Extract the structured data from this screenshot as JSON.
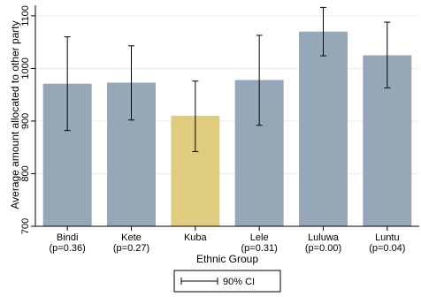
{
  "chart_data": {
    "type": "bar",
    "categories": [
      "Bindi",
      "Kete",
      "Kuba",
      "Lele",
      "Luluwa",
      "Luntu"
    ],
    "category_pvalues": [
      "(p=0.36)",
      "(p=0.27)",
      "",
      "(p=0.31)",
      "(p=0.00)",
      "(p=0.04)"
    ],
    "values": [
      971,
      973,
      910,
      978,
      1070,
      1025
    ],
    "ci_low": [
      882,
      902,
      842,
      892,
      1024,
      963
    ],
    "ci_high": [
      1060,
      1043,
      976,
      1063,
      1116,
      1088
    ],
    "bar_colors": [
      "#96a8b8",
      "#96a8b8",
      "#e0cc7e",
      "#96a8b8",
      "#96a8b8",
      "#96a8b8"
    ],
    "baseline": 700,
    "ylim": [
      700,
      1120
    ],
    "yticks": [
      700,
      800,
      900,
      1000,
      1100
    ],
    "title": "",
    "xlabel": "Ethnic Group",
    "ylabel": "Average amount allocated to other party",
    "legend": {
      "label": "90% CI",
      "placement": "bottom-center"
    },
    "grid": true
  }
}
